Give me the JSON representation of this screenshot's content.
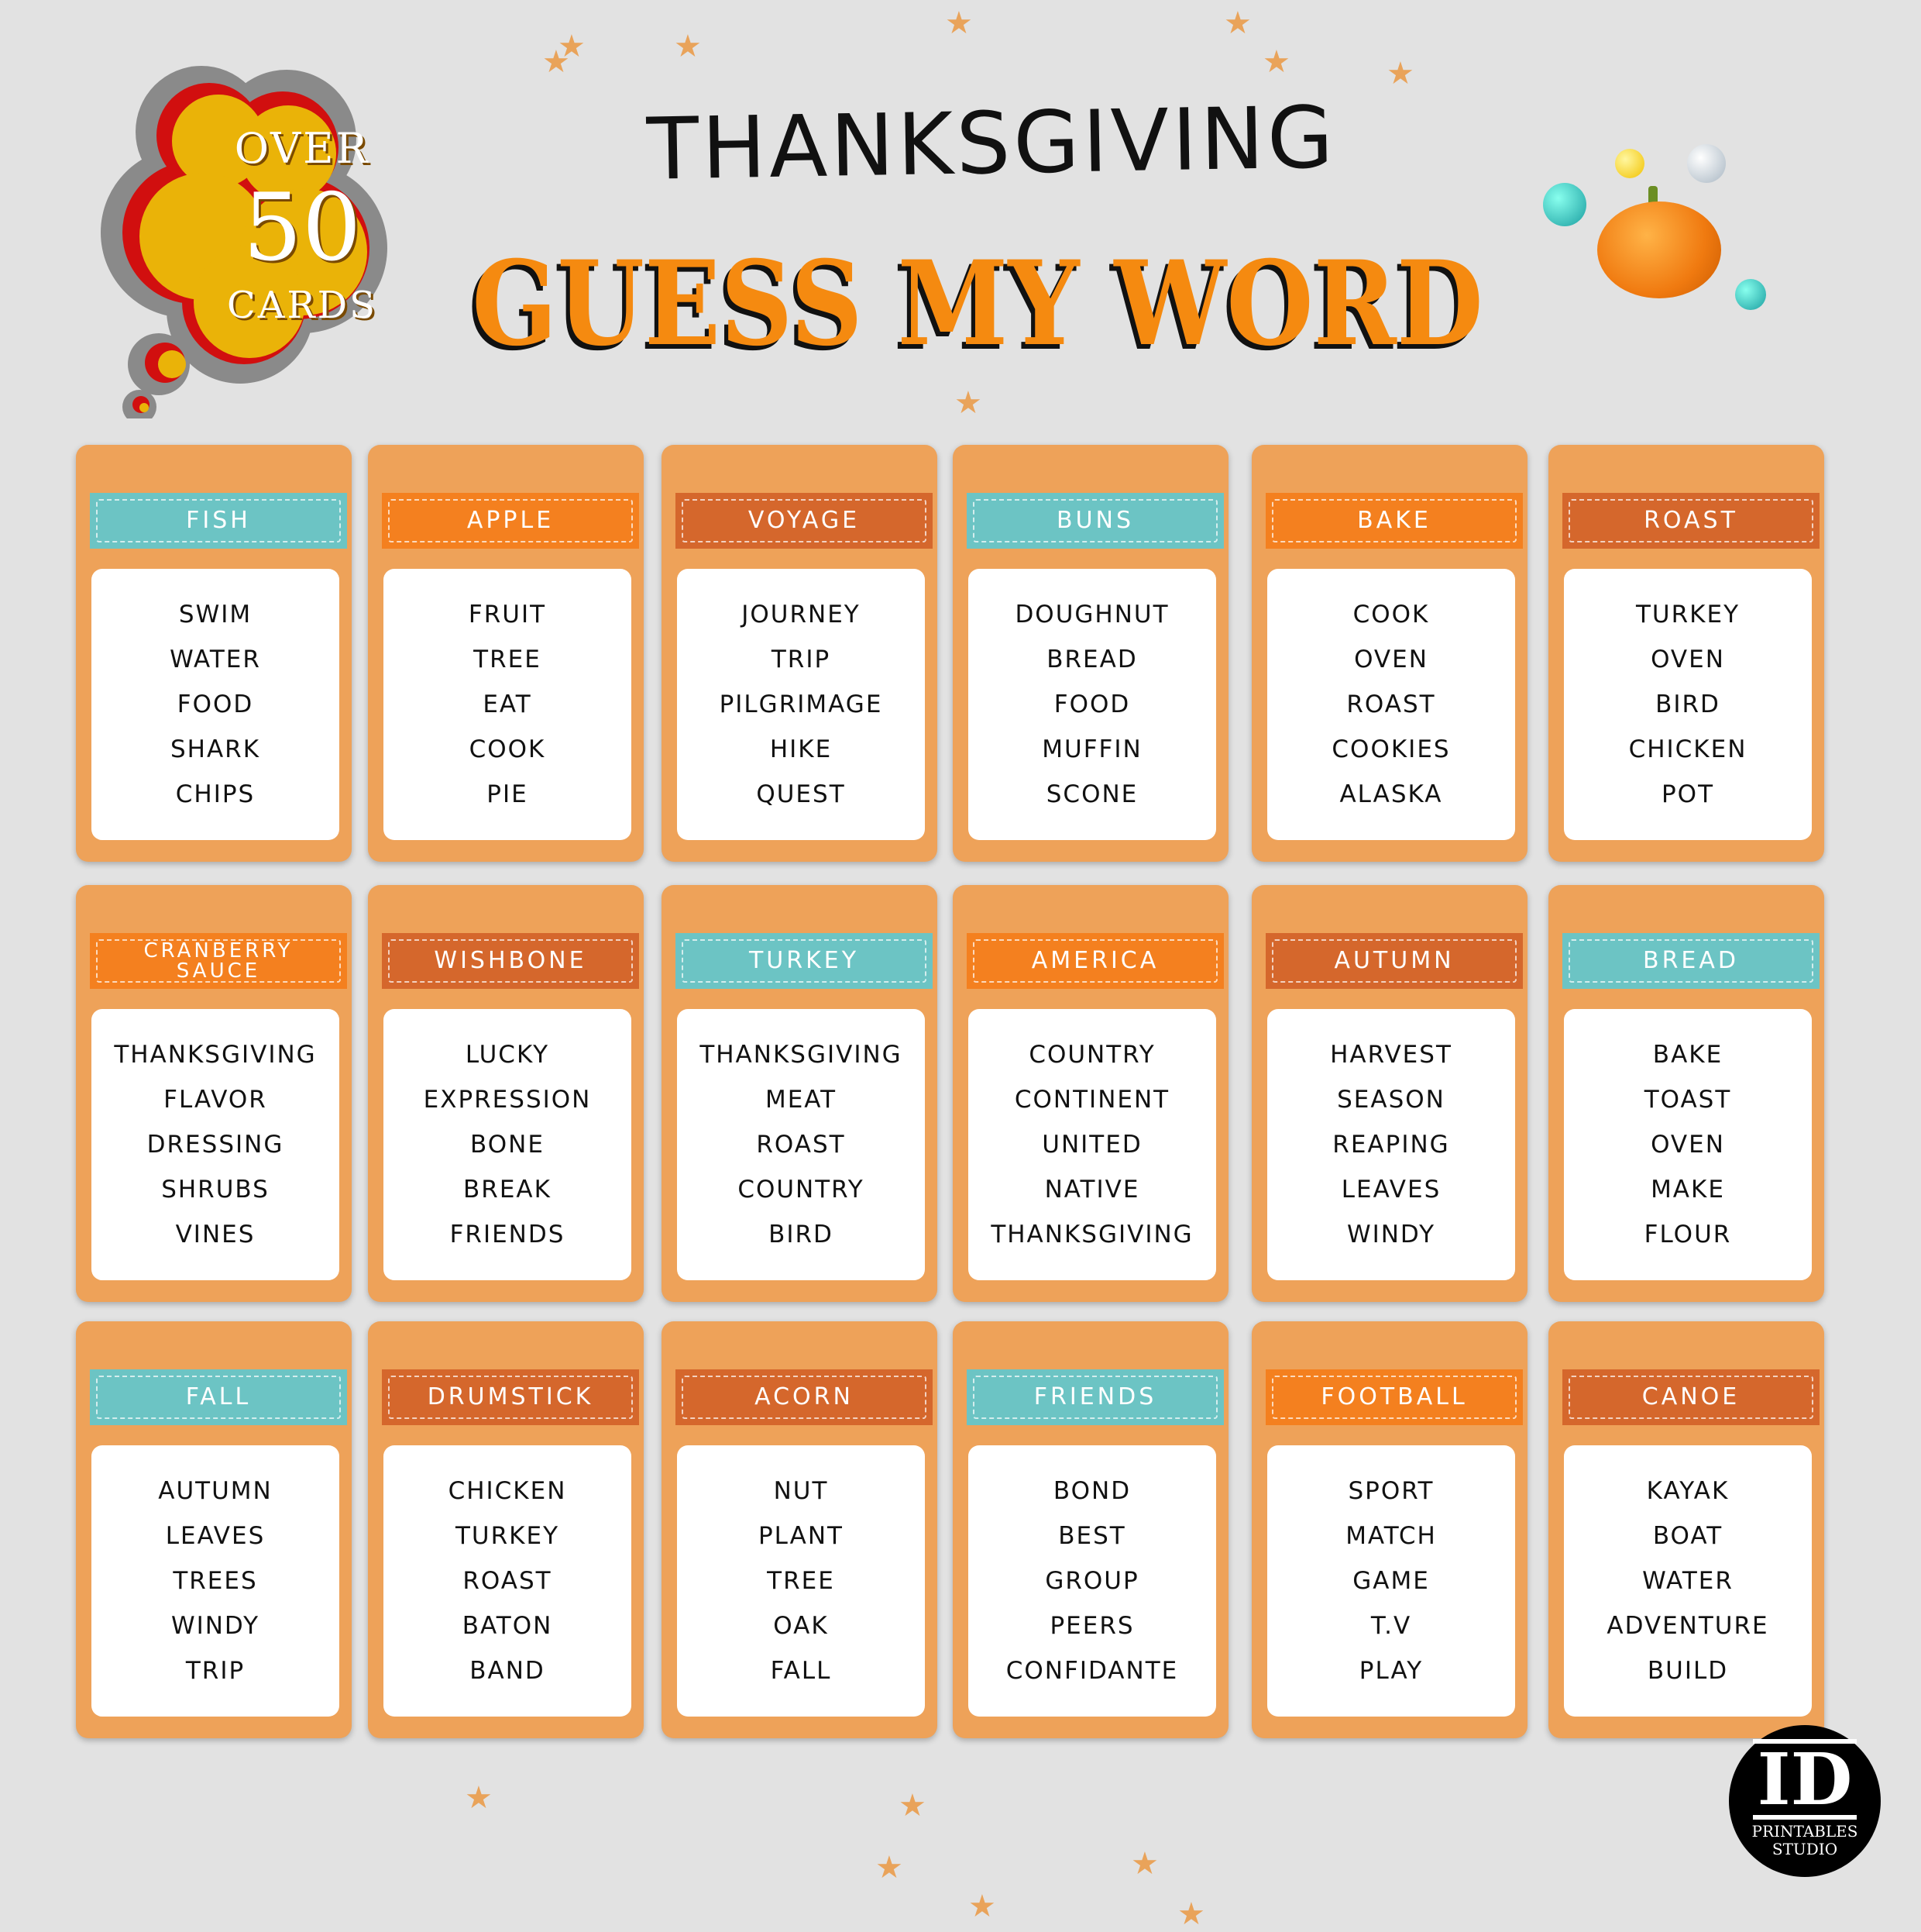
{
  "badge": {
    "line1": "OVER",
    "number": "50",
    "line2": "CARDS",
    "colors": {
      "fill": "#eab308",
      "accent": "#d10f0f",
      "outline": "#8a8a8a"
    }
  },
  "title": {
    "line1": "THANKSGIVING",
    "line2": "GUESS MY WORD"
  },
  "colors": {
    "teal": "#6cc4c4",
    "orange": "#f4801f",
    "rust": "#d5672c",
    "card": "#eea259"
  },
  "cards": [
    {
      "title": "FISH",
      "color": "teal",
      "words": [
        "SWIM",
        "WATER",
        "FOOD",
        "SHARK",
        "CHIPS"
      ]
    },
    {
      "title": "APPLE",
      "color": "orange",
      "words": [
        "FRUIT",
        "TREE",
        "EAT",
        "COOK",
        "PIE"
      ]
    },
    {
      "title": "VOYAGE",
      "color": "rust",
      "words": [
        "JOURNEY",
        "TRIP",
        "PILGRIMAGE",
        "HIKE",
        "QUEST"
      ]
    },
    {
      "title": "BUNS",
      "color": "teal",
      "words": [
        "DOUGHNUT",
        "BREAD",
        "FOOD",
        "MUFFIN",
        "SCONE"
      ]
    },
    {
      "title": "BAKE",
      "color": "orange",
      "words": [
        "COOK",
        "OVEN",
        "ROAST",
        "COOKIES",
        "ALASKA"
      ]
    },
    {
      "title": "ROAST",
      "color": "rust",
      "words": [
        "TURKEY",
        "OVEN",
        "BIRD",
        "CHICKEN",
        "POT"
      ]
    },
    {
      "title": "CRANBERRY SAUCE",
      "color": "orange",
      "words": [
        "THANKSGIVING",
        "FLAVOR",
        "DRESSING",
        "SHRUBS",
        "VINES"
      ]
    },
    {
      "title": "WISHBONE",
      "color": "rust",
      "words": [
        "LUCKY",
        "EXPRESSION",
        "BONE",
        "BREAK",
        "FRIENDS"
      ]
    },
    {
      "title": "TURKEY",
      "color": "teal",
      "words": [
        "THANKSGIVING",
        "MEAT",
        "ROAST",
        "COUNTRY",
        "BIRD"
      ]
    },
    {
      "title": "AMERICA",
      "color": "orange",
      "words": [
        "COUNTRY",
        "CONTINENT",
        "UNITED",
        "NATIVE",
        "THANKSGIVING"
      ]
    },
    {
      "title": "AUTUMN",
      "color": "rust",
      "words": [
        "HARVEST",
        "SEASON",
        "REAPING",
        "LEAVES",
        "WINDY"
      ]
    },
    {
      "title": "BREAD",
      "color": "teal",
      "words": [
        "BAKE",
        "TOAST",
        "OVEN",
        "MAKE",
        "FLOUR"
      ]
    },
    {
      "title": "FALL",
      "color": "teal",
      "words": [
        "AUTUMN",
        "LEAVES",
        "TREES",
        "WINDY",
        "TRIP"
      ]
    },
    {
      "title": "DRUMSTICK",
      "color": "rust",
      "words": [
        "CHICKEN",
        "TURKEY",
        "ROAST",
        "BATON",
        "BAND"
      ]
    },
    {
      "title": "ACORN",
      "color": "rust",
      "words": [
        "NUT",
        "PLANT",
        "TREE",
        "OAK",
        "FALL"
      ]
    },
    {
      "title": "FRIENDS",
      "color": "teal",
      "words": [
        "BOND",
        "BEST",
        "GROUP",
        "PEERS",
        "CONFIDANTE"
      ]
    },
    {
      "title": "FOOTBALL",
      "color": "orange",
      "words": [
        "SPORT",
        "MATCH",
        "GAME",
        "T.V",
        "PLAY"
      ]
    },
    {
      "title": "CANOE",
      "color": "rust",
      "words": [
        "KAYAK",
        "BOAT",
        "WATER",
        "ADVENTURE",
        "BUILD"
      ]
    }
  ],
  "logo": {
    "monogram": "ID",
    "line1": "PRINTABLES",
    "line2": "STUDIO"
  }
}
